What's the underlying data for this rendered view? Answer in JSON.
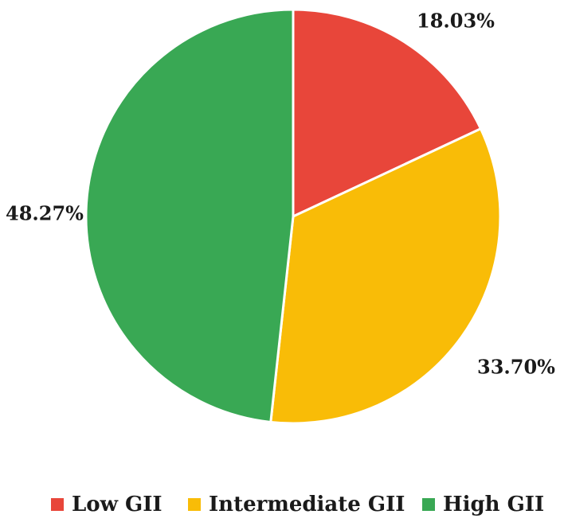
{
  "chart_data": {
    "type": "pie",
    "title": "",
    "start_angle_deg": 0,
    "direction": "clockwise",
    "legend_position": "bottom",
    "slices": [
      {
        "name": "Low GII",
        "value": 18.03,
        "label": "18.03%",
        "color": "#e8463a"
      },
      {
        "name": "Intermediate GII",
        "value": 33.7,
        "label": "33.70%",
        "color": "#f9bc07"
      },
      {
        "name": "High GII",
        "value": 48.27,
        "label": "48.27%",
        "color": "#39a854"
      }
    ]
  }
}
